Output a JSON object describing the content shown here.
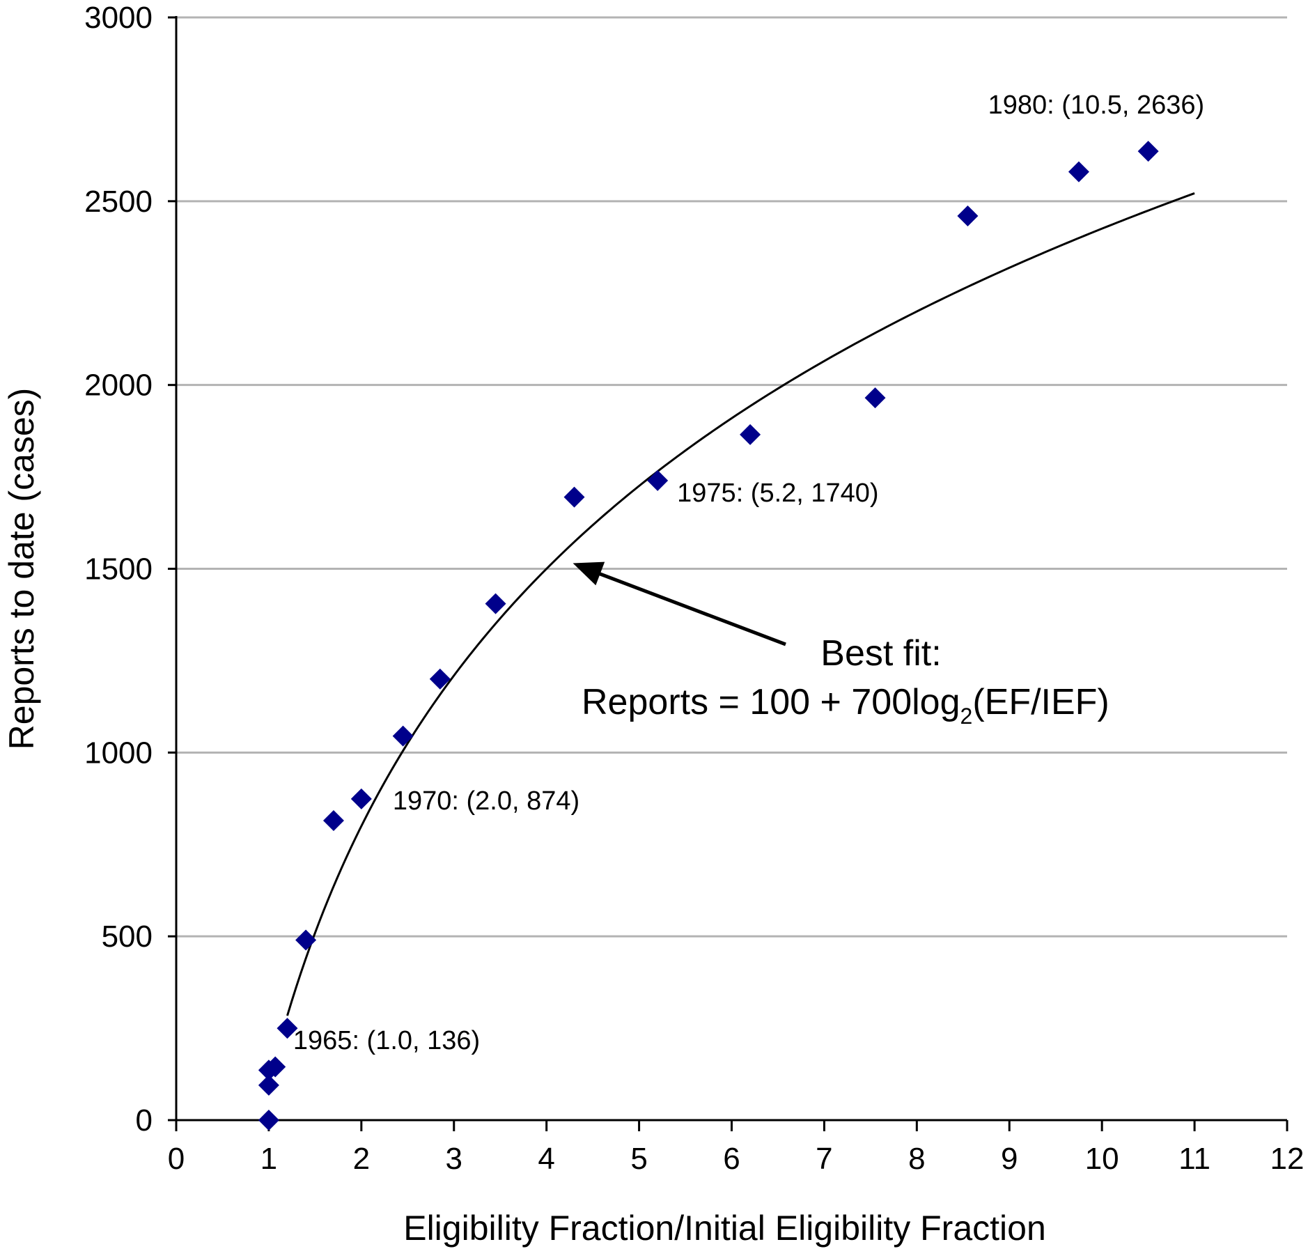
{
  "chart_data": {
    "type": "scatter",
    "xlabel": "Eligibility Fraction/Initial Eligibility Fraction",
    "ylabel": "Reports to date (cases)",
    "xlim": [
      0,
      12
    ],
    "ylim": [
      0,
      3000
    ],
    "xticks": [
      "0",
      "1",
      "2",
      "3",
      "4",
      "5",
      "6",
      "7",
      "8",
      "9",
      "10",
      "11",
      "12"
    ],
    "yticks": [
      "0",
      "500",
      "1000",
      "1500",
      "2000",
      "2500",
      "3000"
    ],
    "grid": "horizontal",
    "marker_color": "#00008b",
    "series": [
      {
        "points": [
          {
            "x": 1.0,
            "y": 0
          },
          {
            "x": 1.0,
            "y": 95
          },
          {
            "x": 1.0,
            "y": 136
          },
          {
            "x": 1.07,
            "y": 145
          },
          {
            "x": 1.2,
            "y": 250
          },
          {
            "x": 1.4,
            "y": 490
          },
          {
            "x": 1.7,
            "y": 815
          },
          {
            "x": 2.0,
            "y": 874
          },
          {
            "x": 2.45,
            "y": 1045
          },
          {
            "x": 2.85,
            "y": 1200
          },
          {
            "x": 3.45,
            "y": 1405
          },
          {
            "x": 4.3,
            "y": 1695
          },
          {
            "x": 5.2,
            "y": 1740
          },
          {
            "x": 6.2,
            "y": 1865
          },
          {
            "x": 7.55,
            "y": 1965
          },
          {
            "x": 8.55,
            "y": 2460
          },
          {
            "x": 9.75,
            "y": 2580
          },
          {
            "x": 10.5,
            "y": 2636
          }
        ]
      }
    ],
    "fit": {
      "intercept": 100,
      "coefficient": 700,
      "log_base": 2,
      "x_range": [
        1.2,
        11.0
      ],
      "label_line1": "Best fit:",
      "label_line2_prefix": "Reports = 100 + 700log",
      "label_line2_sub": "2",
      "label_line2_suffix": "(EF/IEF)",
      "arrow_target": {
        "x": 4.3,
        "y": 1500
      }
    },
    "annotations": [
      {
        "text": "1965: (1.0, 136)",
        "x": 1.0,
        "y": 136
      },
      {
        "text": "1970: (2.0, 874)",
        "x": 2.0,
        "y": 874
      },
      {
        "text": "1975: (5.2, 1740)",
        "x": 5.2,
        "y": 1740
      },
      {
        "text": "1980: (10.5, 2636)",
        "x": 10.5,
        "y": 2636
      }
    ]
  }
}
